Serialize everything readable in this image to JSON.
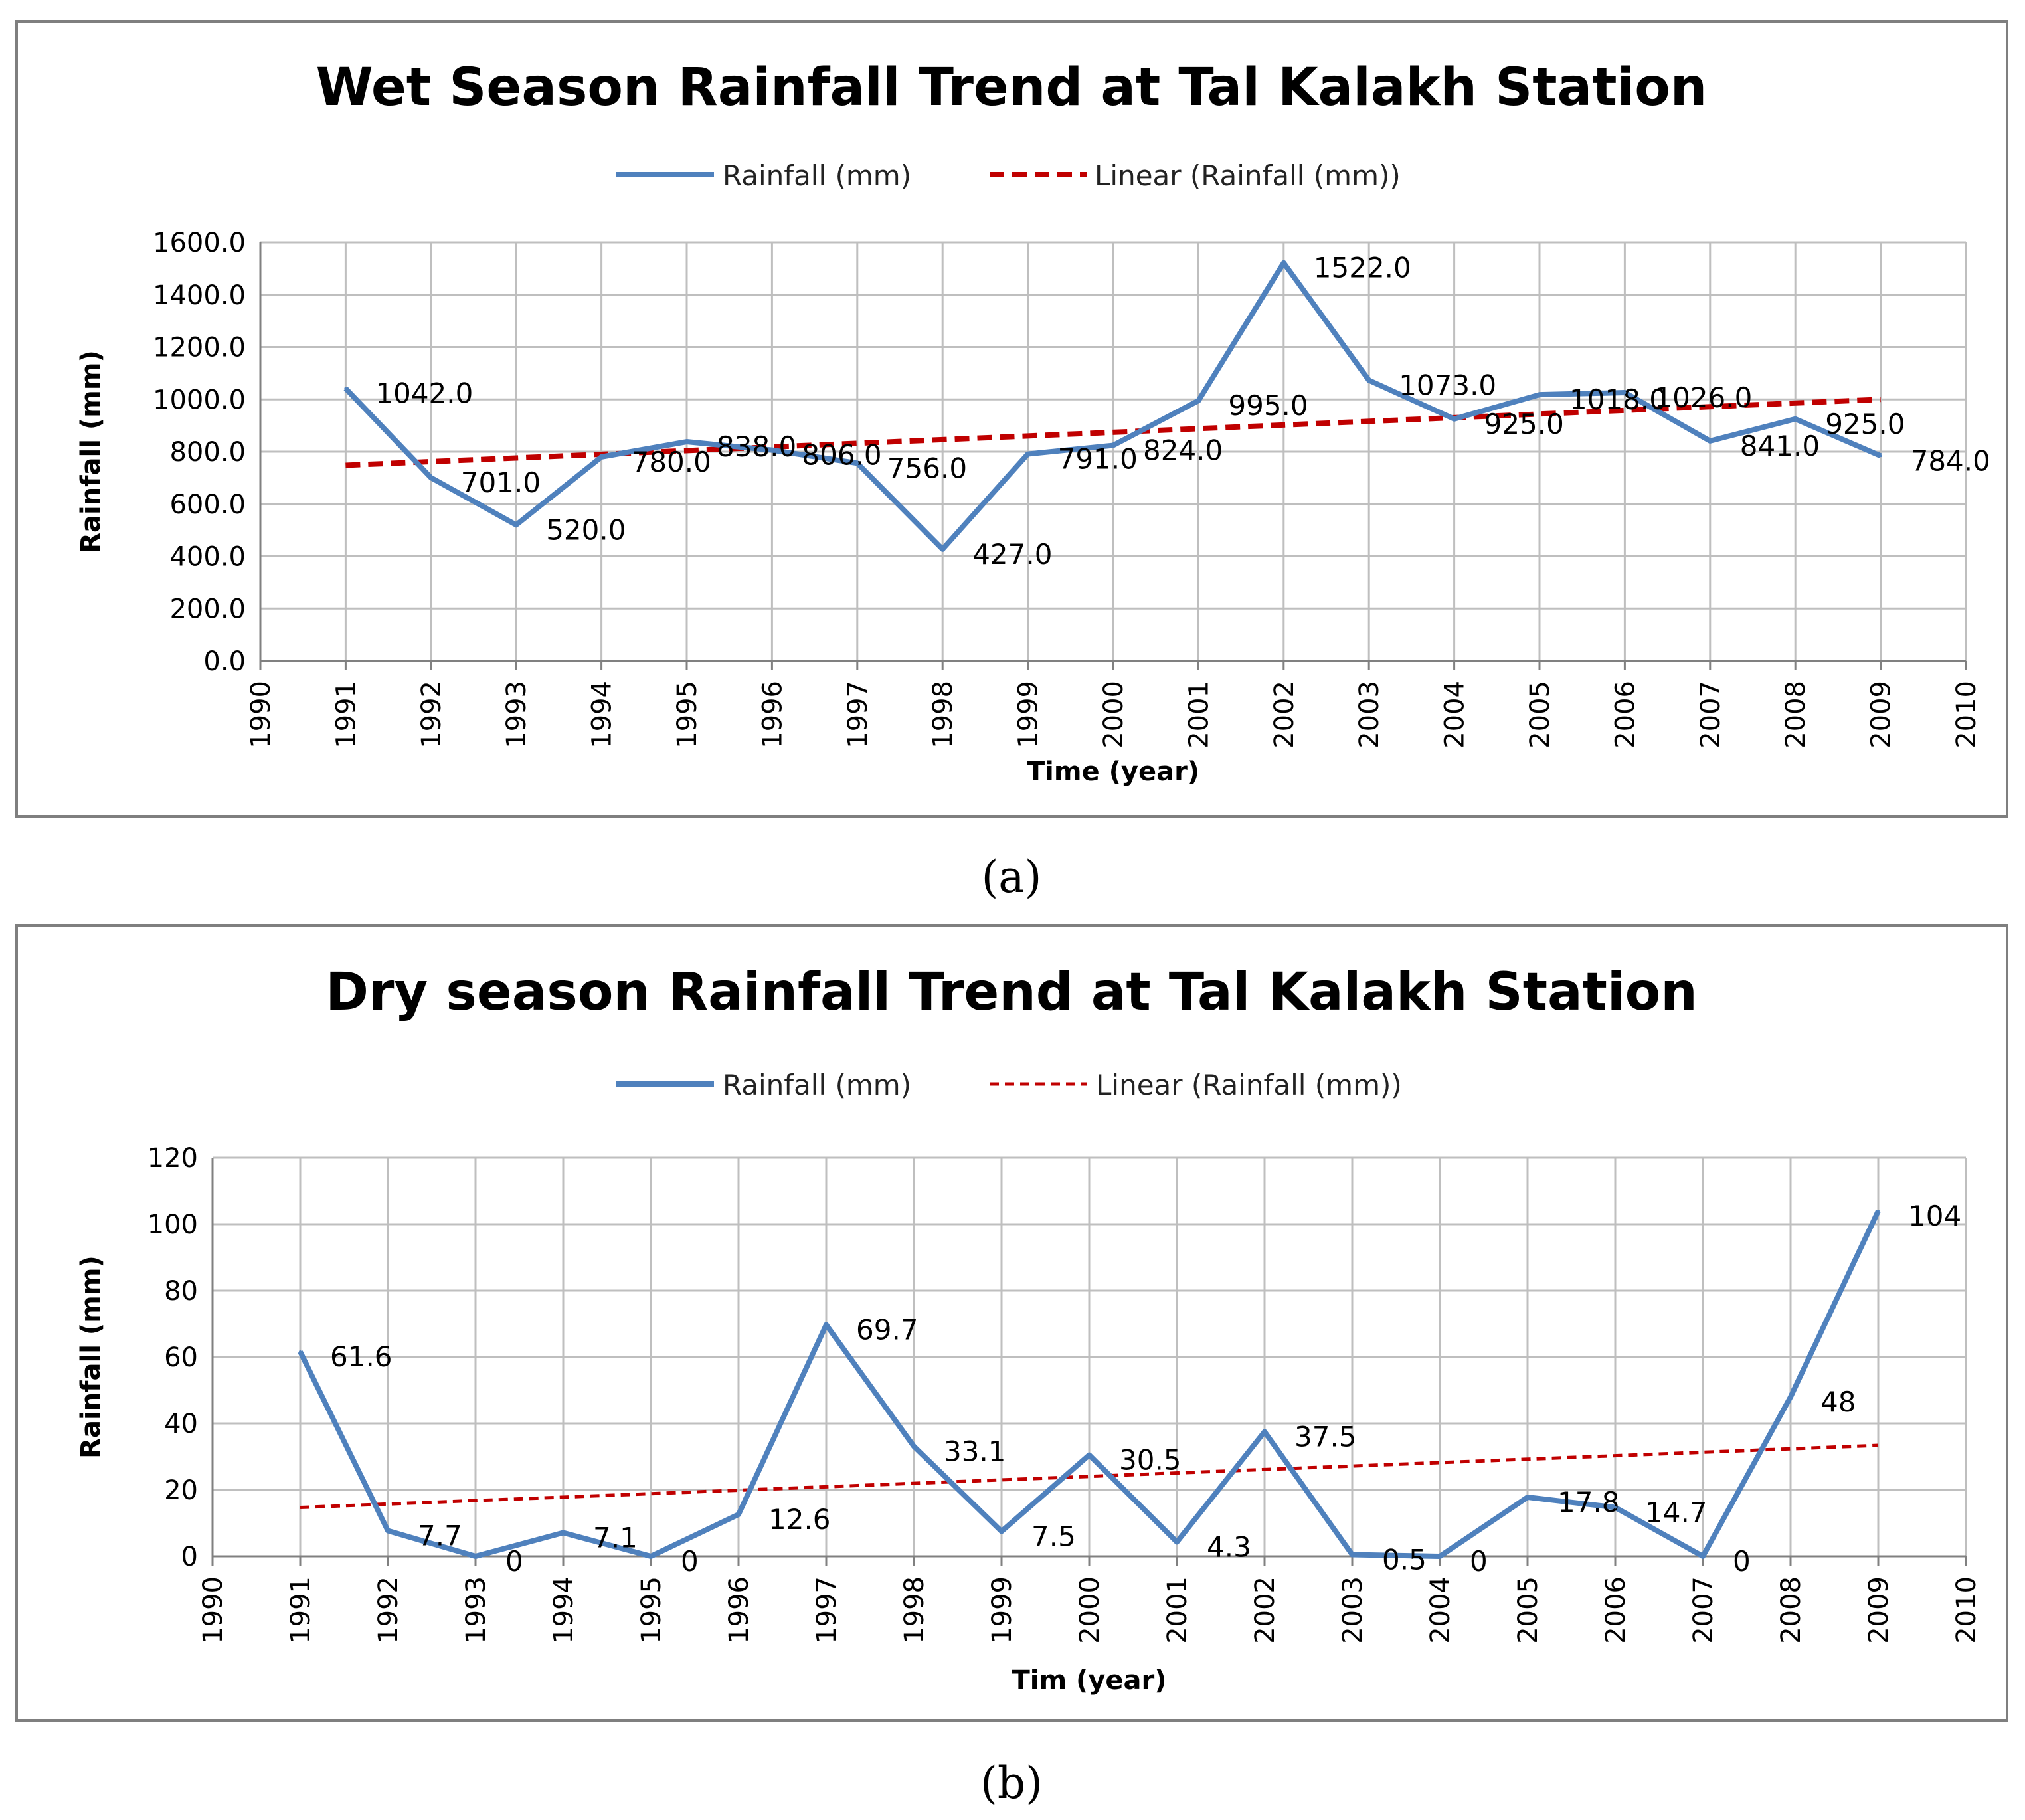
{
  "chart_data": [
    {
      "panel": "(a)",
      "type": "line",
      "title": "Wet Season Rainfall Trend at Tal Kalakh Station",
      "xlabel": "Time (year)",
      "ylabel": "Rainfall (mm)",
      "xlim": [
        1990,
        2010
      ],
      "ylim": [
        0,
        1600
      ],
      "y_ticks": [
        "0.0",
        "200.0",
        "400.0",
        "600.0",
        "800.0",
        "1000.0",
        "1200.0",
        "1400.0",
        "1600.0"
      ],
      "x_ticks": [
        "1990",
        "1991",
        "1992",
        "1993",
        "1994",
        "1995",
        "1996",
        "1997",
        "1998",
        "1999",
        "2000",
        "2001",
        "2002",
        "2003",
        "2004",
        "2005",
        "2006",
        "2007",
        "2008",
        "2009",
        "2010"
      ],
      "grid": true,
      "legend_position": "top-center",
      "series": [
        {
          "name": "Rainfall (mm)",
          "color": "#4F81BD",
          "x": [
            1991,
            1992,
            1993,
            1994,
            1995,
            1996,
            1997,
            1998,
            1999,
            2000,
            2001,
            2002,
            2003,
            2004,
            2005,
            2006,
            2007,
            2008,
            2009
          ],
          "values": [
            1042,
            701,
            520,
            780,
            838,
            806,
            756,
            427,
            791,
            824,
            995,
            1522,
            1073,
            925,
            1018,
            1026,
            841,
            925,
            784
          ],
          "labels": [
            "1042.0",
            "701.0",
            "520.0",
            "780.0",
            "838.0",
            "806.0",
            "756.0",
            "427.0",
            "791.0",
            "824.0",
            "995.0",
            "1522.0",
            "1073.0",
            "925.0",
            "1018.0",
            "1026.0",
            "841.0",
            "925.0",
            "784.0"
          ]
        },
        {
          "name": "Linear (Rainfall (mm))",
          "color": "#C00000",
          "style": "dashed",
          "x": [
            1991,
            2009
          ],
          "values": [
            748,
            1000
          ]
        }
      ]
    },
    {
      "panel": "(b)",
      "type": "line",
      "title": "Dry season Rainfall Trend at Tal Kalakh Station",
      "xlabel": "Tim (year)",
      "ylabel": "Rainfall (mm)",
      "xlim": [
        1990,
        2010
      ],
      "ylim": [
        0,
        120
      ],
      "y_ticks": [
        "0",
        "20",
        "40",
        "60",
        "80",
        "100",
        "120"
      ],
      "x_ticks": [
        "1990",
        "1991",
        "1992",
        "1993",
        "1994",
        "1995",
        "1996",
        "1997",
        "1998",
        "1999",
        "2000",
        "2001",
        "2002",
        "2003",
        "2004",
        "2005",
        "2006",
        "2007",
        "2008",
        "2009",
        "2010"
      ],
      "grid": true,
      "legend_position": "top-center",
      "series": [
        {
          "name": "Rainfall (mm)",
          "color": "#4F81BD",
          "x": [
            1991,
            1992,
            1993,
            1994,
            1995,
            1996,
            1997,
            1998,
            1999,
            2000,
            2001,
            2002,
            2003,
            2004,
            2005,
            2006,
            2007,
            2008,
            2009
          ],
          "values": [
            61.6,
            7.7,
            0,
            7.1,
            0,
            12.6,
            69.7,
            33.1,
            7.5,
            30.5,
            4.3,
            37.5,
            0.5,
            0,
            17.8,
            14.7,
            0,
            48,
            104
          ],
          "labels": [
            "61.6",
            "7.7",
            "0",
            "7.1",
            "0",
            "12.6",
            "69.7",
            "33.1",
            "7.5",
            "30.5",
            "4.3",
            "37.5",
            "0.5",
            "0",
            "17.8",
            "14.7",
            "0",
            "48",
            "104"
          ]
        },
        {
          "name": "Linear (Rainfall (mm))",
          "color": "#C00000",
          "style": "dashed",
          "x": [
            1991,
            2009
          ],
          "values": [
            14.7,
            33.4
          ]
        }
      ]
    }
  ]
}
